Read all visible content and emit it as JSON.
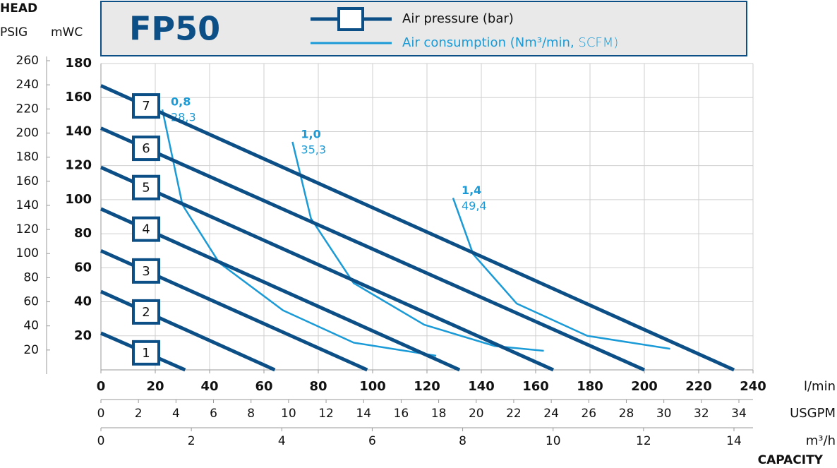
{
  "chart_data": {
    "type": "line",
    "title": "FP50",
    "head_label": "HEAD",
    "ylabel": "mWC",
    "y2label": "PSIG",
    "x_title": "CAPACITY",
    "legend": {
      "pressure": "Air pressure (bar)",
      "consumption": "Air consumption (Nm³/min,",
      "consumption_alt": "SCFM)"
    },
    "pressure_color": "#0b4f86",
    "consumption_color": "#1a9ad6",
    "grid": true,
    "ylim": [
      0,
      180
    ],
    "yticks": [
      20,
      40,
      60,
      80,
      100,
      120,
      140,
      160,
      180
    ],
    "y2lim": [
      0,
      260
    ],
    "y2ticks": [
      20,
      40,
      60,
      80,
      100,
      120,
      140,
      160,
      180,
      200,
      220,
      240,
      260
    ],
    "x_axes": [
      {
        "label": "l/min",
        "xlim": [
          0,
          240
        ],
        "xticks": [
          0,
          20,
          40,
          60,
          80,
          100,
          120,
          140,
          160,
          180,
          200,
          220,
          240
        ]
      },
      {
        "label": "USGPM",
        "xlim": [
          0,
          34
        ],
        "xticks": [
          0,
          2,
          4,
          6,
          8,
          10,
          12,
          14,
          16,
          18,
          20,
          22,
          24,
          26,
          28,
          30,
          32,
          34
        ]
      },
      {
        "label": "m³/h",
        "xlim": [
          0,
          14
        ],
        "xticks": [
          0,
          2,
          4,
          6,
          8,
          10,
          12,
          14
        ]
      }
    ],
    "series": [
      {
        "name": "1",
        "x": [
          0,
          31
        ],
        "values": [
          21.6,
          0
        ]
      },
      {
        "name": "2",
        "x": [
          0,
          64
        ],
        "values": [
          46,
          0
        ]
      },
      {
        "name": "3",
        "x": [
          0,
          98
        ],
        "values": [
          70,
          0
        ]
      },
      {
        "name": "4",
        "x": [
          0,
          132
        ],
        "values": [
          94.6,
          0
        ]
      },
      {
        "name": "5",
        "x": [
          0,
          166.5
        ],
        "values": [
          119,
          0
        ]
      },
      {
        "name": "6",
        "x": [
          0,
          200
        ],
        "values": [
          142,
          0
        ]
      },
      {
        "name": "7",
        "x": [
          0,
          233
        ],
        "values": [
          167,
          0
        ]
      }
    ],
    "consumption": [
      {
        "name": "0,8",
        "scfm": "28,3",
        "x": [
          22.6,
          30,
          43.5,
          67,
          93,
          123.4
        ],
        "values": [
          153,
          97,
          63,
          35,
          16,
          8.3
        ]
      },
      {
        "name": "1,0",
        "scfm": "35,3",
        "x": [
          70.5,
          77.3,
          93,
          119,
          145,
          163
        ],
        "values": [
          134,
          89,
          51,
          26.5,
          14,
          11.2
        ]
      },
      {
        "name": "1,4",
        "scfm": "49,4",
        "x": [
          129.6,
          137,
          153,
          179,
          209.5
        ],
        "values": [
          101,
          68,
          39,
          20,
          12.4
        ]
      }
    ]
  }
}
